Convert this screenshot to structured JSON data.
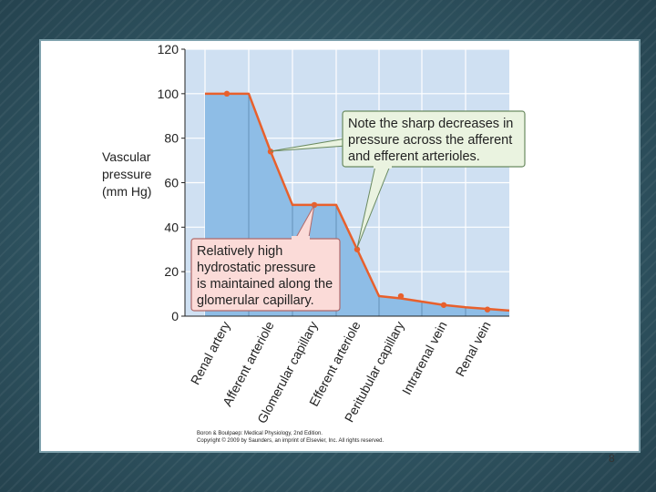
{
  "slide": {
    "page_number": "8"
  },
  "credit": {
    "line1": "Boron & Boulpaep: Medical Physiology, 2nd Edition.",
    "line2": "Copyright © 2009 by Saunders, an imprint of Elsevier, Inc. All rights reserved."
  },
  "annotations": {
    "green_note": [
      "Note the sharp decreases in",
      "pressure across the afferent",
      "and efferent arterioles."
    ],
    "red_note": [
      "Relatively high",
      "hydrostatic pressure",
      "is maintained along the",
      "glomerular capillary."
    ]
  },
  "colors": {
    "plot_bg": "#cfe0f2",
    "area_fill": "#8ebde6",
    "line": "#e8602c",
    "green_box": "#eaf3e0",
    "red_box": "#fbdbd8"
  },
  "chart_data": {
    "type": "area",
    "ylabel": [
      "Vascular",
      "pressure",
      "(mm Hg)"
    ],
    "ylim": [
      0,
      120
    ],
    "yticks": [
      0,
      20,
      40,
      60,
      80,
      100,
      120
    ],
    "categories": [
      "Renal artery",
      "Afferent arteriole",
      "Glomerular capillary",
      "Efferent arteriole",
      "Peritubular capillary",
      "Intrarenal vein",
      "Renal vein"
    ],
    "points": [
      {
        "label": "Renal artery",
        "value": 100
      },
      {
        "label": "Afferent arteriole",
        "value": 74
      },
      {
        "label": "Glomerular capillary",
        "value": 50
      },
      {
        "label": "Efferent arteriole",
        "value": 30
      },
      {
        "label": "Peritubular capillary",
        "value": 9
      },
      {
        "label": "Intrarenal vein",
        "value": 5
      },
      {
        "label": "Renal vein",
        "value": 3
      }
    ],
    "grid": true
  }
}
